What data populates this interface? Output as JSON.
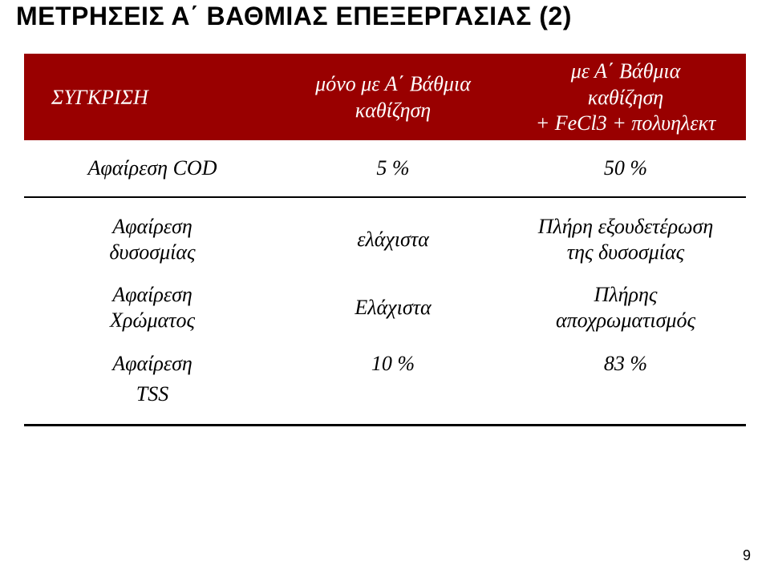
{
  "title": "ΜΕΤΡΗΣΕΙΣ Α΄ ΒΑΘΜΙΑΣ ΕΠΕΞΕΡΓΑΣΙΑΣ (2)",
  "header": {
    "compare": "ΣΥΓΚΡΙΣΗ",
    "col2_line1": "μόνο με Α΄ Βάθμια",
    "col2_line2": "καθίζηση",
    "col3_line1": "με Α΄ Βάθμια",
    "col3_line2": "καθίζηση",
    "col3_line3": "+ FeCl3 + πολυηλεκτ"
  },
  "rows": {
    "cod": {
      "label": "Αφαίρεση COD",
      "a": "5 %",
      "b": "50 %"
    },
    "dys": {
      "label1": "Αφαίρεση",
      "label2": "δυσοσμίας",
      "a": "ελάχιστα",
      "b1": "Πλήρη εξουδετέρωση",
      "b2": "της  δυσοσμίας"
    },
    "color": {
      "label1": "Αφαίρεση",
      "label2": "Χρώματος",
      "a": "Ελάχιστα",
      "b1": "Πλήρης",
      "b2": "αποχρωματισμός"
    },
    "tss": {
      "label1": "Αφαίρεση",
      "label2": "TSS",
      "a": "10 %",
      "b": "83 %"
    }
  },
  "page_number": "9"
}
